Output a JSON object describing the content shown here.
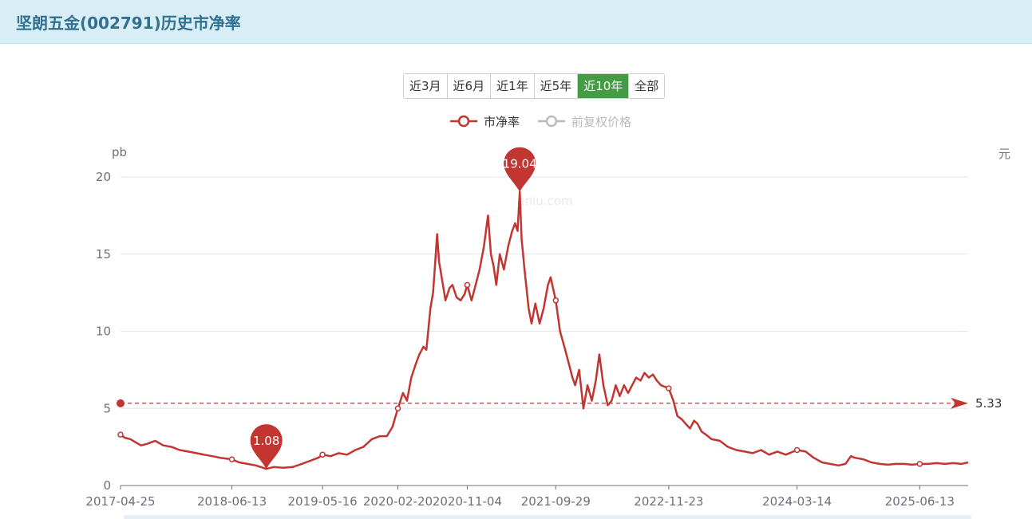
{
  "header": {
    "title": "坚朗五金(002791)历史市净率"
  },
  "range_buttons": [
    {
      "label": "近3月",
      "active": false
    },
    {
      "label": "近6月",
      "active": false
    },
    {
      "label": "近1年",
      "active": false
    },
    {
      "label": "近5年",
      "active": false
    },
    {
      "label": "近10年",
      "active": true
    },
    {
      "label": "全部",
      "active": false
    }
  ],
  "watermark": "eniu.com",
  "colors": {
    "pb": "#c23531",
    "price": "#bbbbbb",
    "grid": "#e0e6f1",
    "axis": "#6e7079",
    "active": "#449d44"
  },
  "chart_data": {
    "type": "line",
    "series": [
      {
        "name": "市净率",
        "color": "#c23531",
        "enabled": true,
        "unit": "pb",
        "points": [
          [
            "2017-04-25",
            3.3
          ],
          [
            "2017-05-10",
            3.1
          ],
          [
            "2017-06-01",
            3.0
          ],
          [
            "2017-06-20",
            2.8
          ],
          [
            "2017-07-10",
            2.6
          ],
          [
            "2017-08-01",
            2.7
          ],
          [
            "2017-09-01",
            2.9
          ],
          [
            "2017-10-01",
            2.6
          ],
          [
            "2017-11-01",
            2.5
          ],
          [
            "2017-12-01",
            2.3
          ],
          [
            "2018-01-01",
            2.2
          ],
          [
            "2018-02-01",
            2.1
          ],
          [
            "2018-03-01",
            2.0
          ],
          [
            "2018-04-01",
            1.9
          ],
          [
            "2018-05-01",
            1.8
          ],
          [
            "2018-06-13",
            1.7
          ],
          [
            "2018-07-10",
            1.5
          ],
          [
            "2018-08-10",
            1.4
          ],
          [
            "2018-09-10",
            1.3
          ],
          [
            "2018-10-19",
            1.08
          ],
          [
            "2018-11-15",
            1.2
          ],
          [
            "2018-12-20",
            1.15
          ],
          [
            "2019-01-25",
            1.2
          ],
          [
            "2019-02-28",
            1.4
          ],
          [
            "2019-03-31",
            1.6
          ],
          [
            "2019-04-30",
            1.8
          ],
          [
            "2019-05-16",
            2.0
          ],
          [
            "2019-06-15",
            1.9
          ],
          [
            "2019-07-15",
            2.1
          ],
          [
            "2019-08-15",
            2.0
          ],
          [
            "2019-09-15",
            2.3
          ],
          [
            "2019-10-15",
            2.5
          ],
          [
            "2019-11-15",
            3.0
          ],
          [
            "2019-12-15",
            3.2
          ],
          [
            "2020-01-10",
            3.2
          ],
          [
            "2020-01-31",
            3.8
          ],
          [
            "2020-02-20",
            5.0
          ],
          [
            "2020-03-10",
            6.0
          ],
          [
            "2020-03-25",
            5.5
          ],
          [
            "2020-04-10",
            7.0
          ],
          [
            "2020-04-25",
            7.8
          ],
          [
            "2020-05-10",
            8.5
          ],
          [
            "2020-05-25",
            9.0
          ],
          [
            "2020-06-05",
            8.8
          ],
          [
            "2020-06-20",
            11.5
          ],
          [
            "2020-06-30",
            12.5
          ],
          [
            "2020-07-08",
            14.5
          ],
          [
            "2020-07-15",
            16.3
          ],
          [
            "2020-07-22",
            14.5
          ],
          [
            "2020-08-01",
            13.5
          ],
          [
            "2020-08-15",
            12.0
          ],
          [
            "2020-08-30",
            12.8
          ],
          [
            "2020-09-10",
            13.0
          ],
          [
            "2020-09-25",
            12.2
          ],
          [
            "2020-10-10",
            12.0
          ],
          [
            "2020-10-25",
            12.4
          ],
          [
            "2020-11-04",
            13.0
          ],
          [
            "2020-11-20",
            12.0
          ],
          [
            "2020-12-05",
            13.0
          ],
          [
            "2020-12-20",
            14.0
          ],
          [
            "2021-01-05",
            15.5
          ],
          [
            "2021-01-20",
            17.5
          ],
          [
            "2021-01-31",
            15.0
          ],
          [
            "2021-02-10",
            14.2
          ],
          [
            "2021-02-20",
            13.0
          ],
          [
            "2021-03-05",
            15.0
          ],
          [
            "2021-03-20",
            14.0
          ],
          [
            "2021-04-05",
            15.5
          ],
          [
            "2021-04-20",
            16.5
          ],
          [
            "2021-05-01",
            17.0
          ],
          [
            "2021-05-10",
            16.5
          ],
          [
            "2021-05-18",
            19.04
          ],
          [
            "2021-05-25",
            16.0
          ],
          [
            "2021-06-05",
            14.0
          ],
          [
            "2021-06-20",
            11.5
          ],
          [
            "2021-07-01",
            10.5
          ],
          [
            "2021-07-15",
            11.8
          ],
          [
            "2021-07-31",
            10.5
          ],
          [
            "2021-08-15",
            11.5
          ],
          [
            "2021-08-31",
            13.0
          ],
          [
            "2021-09-10",
            13.5
          ],
          [
            "2021-09-29",
            12.0
          ],
          [
            "2021-10-15",
            10.0
          ],
          [
            "2021-10-31",
            9.0
          ],
          [
            "2021-11-15",
            8.0
          ],
          [
            "2021-11-30",
            7.0
          ],
          [
            "2021-12-10",
            6.5
          ],
          [
            "2021-12-25",
            7.5
          ],
          [
            "2022-01-10",
            5.0
          ],
          [
            "2022-01-25",
            6.5
          ],
          [
            "2022-02-10",
            5.5
          ],
          [
            "2022-02-25",
            6.8
          ],
          [
            "2022-03-10",
            8.5
          ],
          [
            "2022-03-25",
            6.5
          ],
          [
            "2022-04-10",
            5.2
          ],
          [
            "2022-04-25",
            5.5
          ],
          [
            "2022-05-10",
            6.5
          ],
          [
            "2022-05-25",
            5.8
          ],
          [
            "2022-06-10",
            6.5
          ],
          [
            "2022-06-25",
            6.0
          ],
          [
            "2022-07-10",
            6.5
          ],
          [
            "2022-07-25",
            7.0
          ],
          [
            "2022-08-10",
            6.8
          ],
          [
            "2022-08-25",
            7.3
          ],
          [
            "2022-09-10",
            7.0
          ],
          [
            "2022-09-25",
            7.2
          ],
          [
            "2022-10-10",
            6.8
          ],
          [
            "2022-10-25",
            6.5
          ],
          [
            "2022-11-23",
            6.3
          ],
          [
            "2022-12-10",
            5.5
          ],
          [
            "2022-12-25",
            4.5
          ],
          [
            "2023-01-10",
            4.3
          ],
          [
            "2023-01-25",
            4.0
          ],
          [
            "2023-02-10",
            3.7
          ],
          [
            "2023-02-25",
            4.2
          ],
          [
            "2023-03-10",
            4.0
          ],
          [
            "2023-03-25",
            3.5
          ],
          [
            "2023-04-10",
            3.3
          ],
          [
            "2023-05-01",
            3.0
          ],
          [
            "2023-06-01",
            2.9
          ],
          [
            "2023-07-01",
            2.5
          ],
          [
            "2023-08-01",
            2.3
          ],
          [
            "2023-09-01",
            2.2
          ],
          [
            "2023-10-01",
            2.1
          ],
          [
            "2023-11-01",
            2.3
          ],
          [
            "2023-12-01",
            2.0
          ],
          [
            "2024-01-01",
            2.2
          ],
          [
            "2024-02-01",
            2.0
          ],
          [
            "2024-03-14",
            2.3
          ],
          [
            "2024-04-15",
            2.2
          ],
          [
            "2024-05-15",
            1.8
          ],
          [
            "2024-06-15",
            1.5
          ],
          [
            "2024-07-15",
            1.4
          ],
          [
            "2024-08-15",
            1.3
          ],
          [
            "2024-09-10",
            1.4
          ],
          [
            "2024-09-30",
            1.9
          ],
          [
            "2024-10-15",
            1.8
          ],
          [
            "2024-11-15",
            1.7
          ],
          [
            "2024-12-15",
            1.5
          ],
          [
            "2025-01-15",
            1.4
          ],
          [
            "2025-02-15",
            1.35
          ],
          [
            "2025-03-15",
            1.4
          ],
          [
            "2025-04-15",
            1.4
          ],
          [
            "2025-05-15",
            1.35
          ],
          [
            "2025-06-13",
            1.4
          ],
          [
            "2025-07-15",
            1.4
          ],
          [
            "2025-08-15",
            1.45
          ],
          [
            "2025-09-15",
            1.4
          ],
          [
            "2025-10-15",
            1.45
          ],
          [
            "2025-11-15",
            1.4
          ],
          [
            "2025-12-10",
            1.5
          ]
        ]
      },
      {
        "name": "前复权价格",
        "color": "#bbbbbb",
        "enabled": false,
        "unit": "元",
        "points": []
      }
    ],
    "x_ticks": [
      "2017-04-25",
      "2018-06-13",
      "2019-05-16",
      "2020-02-20",
      "2020-11-04",
      "2021-09-29",
      "2022-11-23",
      "2024-03-14",
      "2025-06-13"
    ],
    "y_ticks": [
      0,
      5,
      10,
      15,
      20
    ],
    "ylim": [
      0,
      20
    ],
    "y_left_unit": "pb",
    "y_right_unit": "元",
    "markline": {
      "value": 5.33,
      "label": "5.33"
    },
    "max_point": {
      "date": "2021-05-18",
      "value": 19.04,
      "label": "19.04"
    },
    "min_point": {
      "date": "2018-10-19",
      "value": 1.08,
      "label": "1.08"
    },
    "grid": true,
    "legend_position": "top-center"
  }
}
